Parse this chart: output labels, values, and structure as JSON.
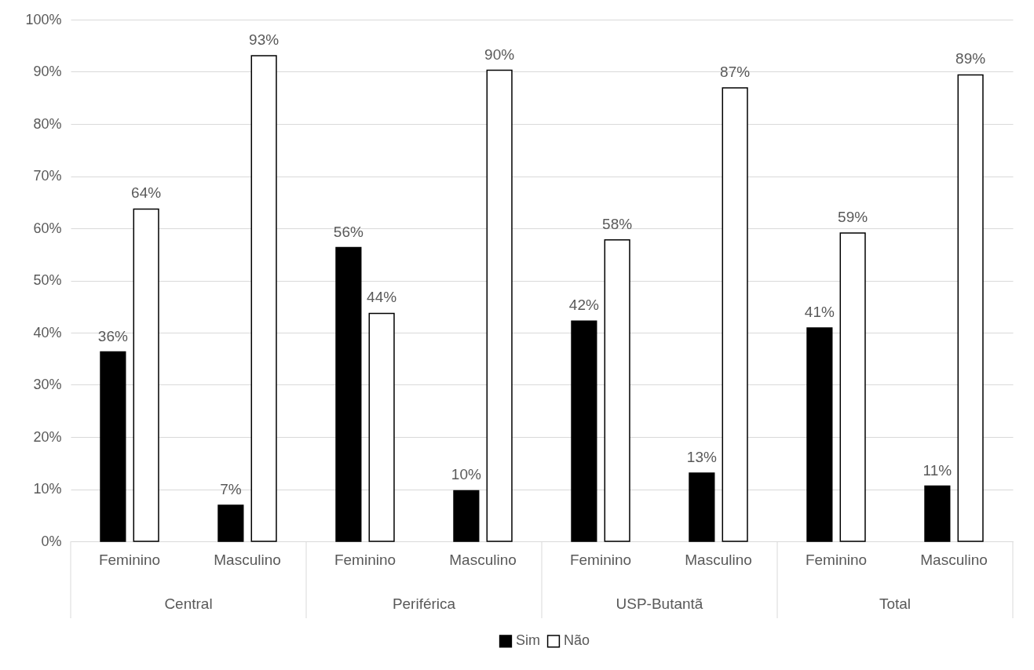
{
  "chart_data": {
    "type": "bar",
    "categories": [
      "Feminino",
      "Masculino",
      "Feminino",
      "Masculino",
      "Feminino",
      "Masculino",
      "Feminino",
      "Masculino"
    ],
    "series": [
      {
        "name": "Sim",
        "color": "#000000",
        "values": [
          36.3,
          6.9,
          56.3,
          9.7,
          42.2,
          13.1,
          40.9,
          10.6
        ],
        "value_labels": [
          "36%",
          "7%",
          "56%",
          "10%",
          "42%",
          "13%",
          "41%",
          "11%"
        ]
      },
      {
        "name": "Não",
        "color": "#ffffff",
        "values": [
          63.7,
          93.1,
          43.7,
          90.3,
          57.8,
          86.9,
          59.1,
          89.4
        ],
        "value_labels": [
          "64%",
          "93%",
          "44%",
          "90%",
          "58%",
          "87%",
          "59%",
          "89%"
        ]
      }
    ],
    "annotations": [
      "Central",
      "Periférica",
      "USP-Butantã",
      "Total"
    ],
    "ylim": [
      0,
      100
    ],
    "yticks": [
      {
        "value": 0,
        "label": "0%"
      },
      {
        "value": 10,
        "label": "10%"
      },
      {
        "value": 20,
        "label": "20%"
      },
      {
        "value": 30,
        "label": "30%"
      },
      {
        "value": 40,
        "label": "40%"
      },
      {
        "value": 50,
        "label": "50%"
      },
      {
        "value": 60,
        "label": "60%"
      },
      {
        "value": 70,
        "label": "70%"
      },
      {
        "value": 80,
        "label": "80%"
      },
      {
        "value": 90,
        "label": "90%"
      },
      {
        "value": 100,
        "label": "100%"
      }
    ],
    "grid": "y",
    "legend": "bottom"
  }
}
